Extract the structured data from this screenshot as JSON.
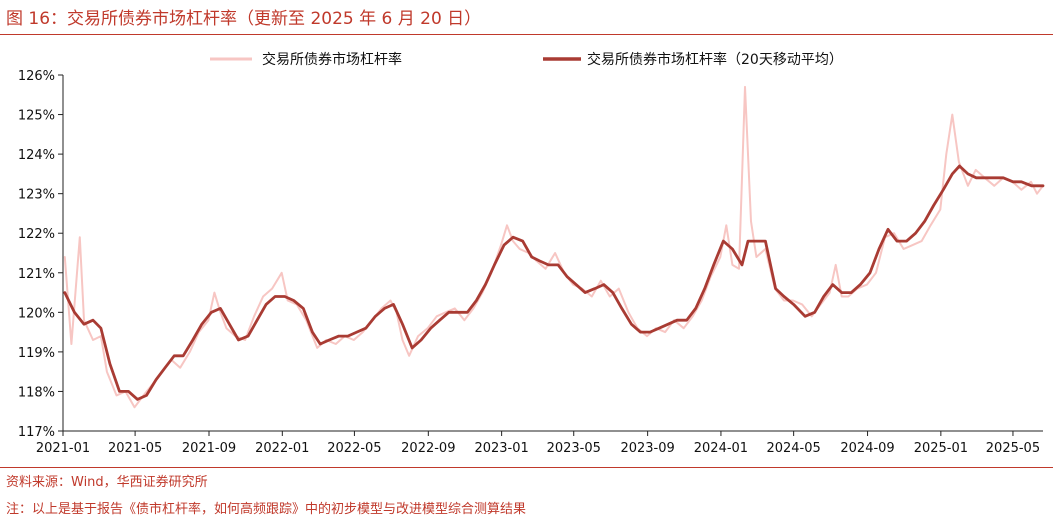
{
  "figure": {
    "title": "图 16：交易所债券市场杠杆率（更新至 2025 年 6 月 20 日）",
    "source": "资料来源：Wind，华西证券研究所",
    "note": "注：以上是基于报告《债市杠杆率，如何高频跟踪》中的初步模型与改进模型综合测算结果"
  },
  "chart_data": {
    "type": "line",
    "title": "",
    "xlabel": "",
    "ylabel": "",
    "ylim": [
      117,
      126
    ],
    "y_ticks": [
      "117%",
      "118%",
      "119%",
      "120%",
      "121%",
      "122%",
      "123%",
      "124%",
      "125%",
      "126%"
    ],
    "x_ticks": [
      "2021-01",
      "2021-05",
      "2021-09",
      "2022-01",
      "2022-05",
      "2022-09",
      "2023-01",
      "2023-05",
      "2023-09",
      "2024-01",
      "2024-05",
      "2024-09",
      "2025-01",
      "2025-05"
    ],
    "x_range": [
      "2021-01",
      "2025-06-20"
    ],
    "legend_position": "top",
    "grid": false,
    "series": [
      {
        "name": "交易所债券市场杠杆率",
        "color": "#f7c6c3",
        "points": [
          [
            "2021-01-04",
            121.4
          ],
          [
            "2021-01-15",
            119.2
          ],
          [
            "2021-01-29",
            121.9
          ],
          [
            "2021-02-05",
            119.8
          ],
          [
            "2021-02-20",
            119.3
          ],
          [
            "2021-03-05",
            119.4
          ],
          [
            "2021-03-15",
            118.5
          ],
          [
            "2021-03-31",
            117.9
          ],
          [
            "2021-04-15",
            118.0
          ],
          [
            "2021-04-30",
            117.6
          ],
          [
            "2021-05-15",
            117.9
          ],
          [
            "2021-05-31",
            118.2
          ],
          [
            "2021-06-15",
            118.5
          ],
          [
            "2021-06-30",
            118.8
          ],
          [
            "2021-07-15",
            118.6
          ],
          [
            "2021-07-31",
            119.0
          ],
          [
            "2021-08-15",
            119.5
          ],
          [
            "2021-08-31",
            119.8
          ],
          [
            "2021-09-10",
            120.5
          ],
          [
            "2021-09-20",
            120.0
          ],
          [
            "2021-09-30",
            119.6
          ],
          [
            "2021-10-15",
            119.4
          ],
          [
            "2021-10-31",
            119.3
          ],
          [
            "2021-11-15",
            119.9
          ],
          [
            "2021-11-30",
            120.4
          ],
          [
            "2021-12-15",
            120.6
          ],
          [
            "2021-12-31",
            121.0
          ],
          [
            "2022-01-10",
            120.3
          ],
          [
            "2022-01-25",
            120.2
          ],
          [
            "2022-02-10",
            119.8
          ],
          [
            "2022-02-28",
            119.1
          ],
          [
            "2022-03-15",
            119.3
          ],
          [
            "2022-03-31",
            119.2
          ],
          [
            "2022-04-15",
            119.4
          ],
          [
            "2022-04-30",
            119.3
          ],
          [
            "2022-05-15",
            119.5
          ],
          [
            "2022-05-31",
            119.8
          ],
          [
            "2022-06-15",
            120.1
          ],
          [
            "2022-06-30",
            120.3
          ],
          [
            "2022-07-10",
            120.0
          ],
          [
            "2022-07-20",
            119.3
          ],
          [
            "2022-07-31",
            118.9
          ],
          [
            "2022-08-15",
            119.4
          ],
          [
            "2022-08-31",
            119.6
          ],
          [
            "2022-09-15",
            119.9
          ],
          [
            "2022-09-30",
            120.0
          ],
          [
            "2022-10-15",
            120.1
          ],
          [
            "2022-10-31",
            119.8
          ],
          [
            "2022-11-15",
            120.1
          ],
          [
            "2022-11-30",
            120.5
          ],
          [
            "2022-12-15",
            121.0
          ],
          [
            "2022-12-31",
            121.7
          ],
          [
            "2023-01-10",
            122.2
          ],
          [
            "2023-01-20",
            121.8
          ],
          [
            "2023-01-31",
            121.6
          ],
          [
            "2023-02-15",
            121.5
          ],
          [
            "2023-02-28",
            121.3
          ],
          [
            "2023-03-15",
            121.1
          ],
          [
            "2023-03-31",
            121.5
          ],
          [
            "2023-04-15",
            121.0
          ],
          [
            "2023-04-30",
            120.7
          ],
          [
            "2023-05-15",
            120.6
          ],
          [
            "2023-05-31",
            120.4
          ],
          [
            "2023-06-15",
            120.8
          ],
          [
            "2023-06-30",
            120.4
          ],
          [
            "2023-07-15",
            120.6
          ],
          [
            "2023-07-31",
            120.0
          ],
          [
            "2023-08-15",
            119.6
          ],
          [
            "2023-08-31",
            119.4
          ],
          [
            "2023-09-15",
            119.6
          ],
          [
            "2023-09-30",
            119.5
          ],
          [
            "2023-10-15",
            119.8
          ],
          [
            "2023-10-31",
            119.6
          ],
          [
            "2023-11-15",
            119.9
          ],
          [
            "2023-11-30",
            120.3
          ],
          [
            "2023-12-15",
            120.9
          ],
          [
            "2023-12-31",
            121.4
          ],
          [
            "2024-01-10",
            122.2
          ],
          [
            "2024-01-20",
            121.2
          ],
          [
            "2024-01-31",
            121.1
          ],
          [
            "2024-02-10",
            125.7
          ],
          [
            "2024-02-20",
            122.3
          ],
          [
            "2024-02-29",
            121.4
          ],
          [
            "2024-03-15",
            121.6
          ],
          [
            "2024-03-31",
            120.6
          ],
          [
            "2024-04-15",
            120.3
          ],
          [
            "2024-04-30",
            120.3
          ],
          [
            "2024-05-15",
            120.2
          ],
          [
            "2024-05-31",
            119.9
          ],
          [
            "2024-06-15",
            120.2
          ],
          [
            "2024-06-30",
            120.5
          ],
          [
            "2024-07-10",
            121.2
          ],
          [
            "2024-07-20",
            120.4
          ],
          [
            "2024-07-31",
            120.4
          ],
          [
            "2024-08-15",
            120.6
          ],
          [
            "2024-08-31",
            120.7
          ],
          [
            "2024-09-15",
            121.0
          ],
          [
            "2024-09-30",
            121.9
          ],
          [
            "2024-10-15",
            122.0
          ],
          [
            "2024-10-31",
            121.6
          ],
          [
            "2024-11-15",
            121.7
          ],
          [
            "2024-11-30",
            121.8
          ],
          [
            "2024-12-15",
            122.2
          ],
          [
            "2024-12-31",
            122.6
          ],
          [
            "2025-01-10",
            124.0
          ],
          [
            "2025-01-20",
            125.0
          ],
          [
            "2025-01-31",
            123.8
          ],
          [
            "2025-02-15",
            123.2
          ],
          [
            "2025-02-28",
            123.6
          ],
          [
            "2025-03-15",
            123.4
          ],
          [
            "2025-03-31",
            123.2
          ],
          [
            "2025-04-15",
            123.4
          ],
          [
            "2025-04-30",
            123.3
          ],
          [
            "2025-05-15",
            123.1
          ],
          [
            "2025-05-31",
            123.3
          ],
          [
            "2025-06-10",
            123.0
          ],
          [
            "2025-06-20",
            123.2
          ]
        ]
      },
      {
        "name": "交易所债券市场杠杆率（20天移动平均）",
        "color": "#a93b33",
        "points": [
          [
            "2021-01-04",
            120.5
          ],
          [
            "2021-01-20",
            120.0
          ],
          [
            "2021-02-05",
            119.7
          ],
          [
            "2021-02-20",
            119.8
          ],
          [
            "2021-03-05",
            119.6
          ],
          [
            "2021-03-20",
            118.7
          ],
          [
            "2021-04-05",
            118.0
          ],
          [
            "2021-04-20",
            118.0
          ],
          [
            "2021-05-05",
            117.8
          ],
          [
            "2021-05-20",
            117.9
          ],
          [
            "2021-06-05",
            118.3
          ],
          [
            "2021-06-20",
            118.6
          ],
          [
            "2021-07-05",
            118.9
          ],
          [
            "2021-07-20",
            118.9
          ],
          [
            "2021-08-05",
            119.3
          ],
          [
            "2021-08-20",
            119.7
          ],
          [
            "2021-09-05",
            120.0
          ],
          [
            "2021-09-20",
            120.1
          ],
          [
            "2021-10-05",
            119.7
          ],
          [
            "2021-10-20",
            119.3
          ],
          [
            "2021-11-05",
            119.4
          ],
          [
            "2021-11-20",
            119.8
          ],
          [
            "2021-12-05",
            120.2
          ],
          [
            "2021-12-20",
            120.4
          ],
          [
            "2022-01-05",
            120.4
          ],
          [
            "2022-01-20",
            120.3
          ],
          [
            "2022-02-05",
            120.1
          ],
          [
            "2022-02-20",
            119.5
          ],
          [
            "2022-03-05",
            119.2
          ],
          [
            "2022-03-20",
            119.3
          ],
          [
            "2022-04-05",
            119.4
          ],
          [
            "2022-04-20",
            119.4
          ],
          [
            "2022-05-05",
            119.5
          ],
          [
            "2022-05-20",
            119.6
          ],
          [
            "2022-06-05",
            119.9
          ],
          [
            "2022-06-20",
            120.1
          ],
          [
            "2022-07-05",
            120.2
          ],
          [
            "2022-07-20",
            119.7
          ],
          [
            "2022-08-05",
            119.1
          ],
          [
            "2022-08-20",
            119.3
          ],
          [
            "2022-09-05",
            119.6
          ],
          [
            "2022-09-20",
            119.8
          ],
          [
            "2022-10-05",
            120.0
          ],
          [
            "2022-10-20",
            120.0
          ],
          [
            "2022-11-05",
            120.0
          ],
          [
            "2022-11-20",
            120.3
          ],
          [
            "2022-12-05",
            120.7
          ],
          [
            "2022-12-20",
            121.2
          ],
          [
            "2023-01-05",
            121.7
          ],
          [
            "2023-01-20",
            121.9
          ],
          [
            "2023-02-05",
            121.8
          ],
          [
            "2023-02-20",
            121.4
          ],
          [
            "2023-03-05",
            121.3
          ],
          [
            "2023-03-20",
            121.2
          ],
          [
            "2023-04-05",
            121.2
          ],
          [
            "2023-04-20",
            120.9
          ],
          [
            "2023-05-05",
            120.7
          ],
          [
            "2023-05-20",
            120.5
          ],
          [
            "2023-06-05",
            120.6
          ],
          [
            "2023-06-20",
            120.7
          ],
          [
            "2023-07-05",
            120.5
          ],
          [
            "2023-07-20",
            120.1
          ],
          [
            "2023-08-05",
            119.7
          ],
          [
            "2023-08-20",
            119.5
          ],
          [
            "2023-09-05",
            119.5
          ],
          [
            "2023-09-20",
            119.6
          ],
          [
            "2023-10-05",
            119.7
          ],
          [
            "2023-10-20",
            119.8
          ],
          [
            "2023-11-05",
            119.8
          ],
          [
            "2023-11-20",
            120.1
          ],
          [
            "2023-12-05",
            120.6
          ],
          [
            "2023-12-20",
            121.2
          ],
          [
            "2024-01-05",
            121.8
          ],
          [
            "2024-01-20",
            121.6
          ],
          [
            "2024-02-05",
            121.2
          ],
          [
            "2024-02-15",
            121.8
          ],
          [
            "2024-03-01",
            121.8
          ],
          [
            "2024-03-15",
            121.8
          ],
          [
            "2024-04-01",
            120.6
          ],
          [
            "2024-04-15",
            120.4
          ],
          [
            "2024-05-01",
            120.2
          ],
          [
            "2024-05-20",
            119.9
          ],
          [
            "2024-06-05",
            120.0
          ],
          [
            "2024-06-20",
            120.4
          ],
          [
            "2024-07-05",
            120.7
          ],
          [
            "2024-07-20",
            120.5
          ],
          [
            "2024-08-05",
            120.5
          ],
          [
            "2024-08-20",
            120.7
          ],
          [
            "2024-09-05",
            121.0
          ],
          [
            "2024-09-20",
            121.6
          ],
          [
            "2024-10-05",
            122.1
          ],
          [
            "2024-10-20",
            121.8
          ],
          [
            "2024-11-05",
            121.8
          ],
          [
            "2024-11-20",
            122.0
          ],
          [
            "2024-12-05",
            122.3
          ],
          [
            "2024-12-20",
            122.7
          ],
          [
            "2025-01-05",
            123.1
          ],
          [
            "2025-01-20",
            123.5
          ],
          [
            "2025-02-01",
            123.7
          ],
          [
            "2025-02-15",
            123.5
          ],
          [
            "2025-03-01",
            123.4
          ],
          [
            "2025-03-15",
            123.4
          ],
          [
            "2025-04-01",
            123.4
          ],
          [
            "2025-04-15",
            123.4
          ],
          [
            "2025-05-01",
            123.3
          ],
          [
            "2025-05-15",
            123.3
          ],
          [
            "2025-06-01",
            123.2
          ],
          [
            "2025-06-20",
            123.2
          ]
        ]
      }
    ]
  }
}
